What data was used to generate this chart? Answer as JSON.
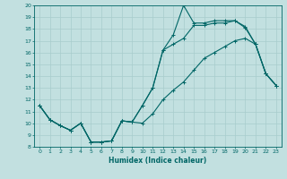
{
  "xlabel": "Humidex (Indice chaleur)",
  "bg_color": "#c2e0e0",
  "line_color": "#006666",
  "grid_color": "#a8cccc",
  "xlim": [
    -0.5,
    23.5
  ],
  "ylim": [
    8,
    20
  ],
  "xticks": [
    0,
    1,
    2,
    3,
    4,
    5,
    6,
    7,
    8,
    9,
    10,
    11,
    12,
    13,
    14,
    15,
    16,
    17,
    18,
    19,
    20,
    21,
    22,
    23
  ],
  "yticks": [
    8,
    9,
    10,
    11,
    12,
    13,
    14,
    15,
    16,
    17,
    18,
    19,
    20
  ],
  "line1_x": [
    0,
    1,
    2,
    3,
    4,
    5,
    6,
    7,
    8,
    9,
    10,
    11,
    12,
    13,
    14,
    15,
    16,
    17,
    18,
    19,
    20,
    21,
    22,
    23
  ],
  "line1_y": [
    11.5,
    10.3,
    9.8,
    9.4,
    10.0,
    8.4,
    8.4,
    8.5,
    10.2,
    10.1,
    10.0,
    10.8,
    12.0,
    12.8,
    13.5,
    14.5,
    15.5,
    16.0,
    16.5,
    17.0,
    17.2,
    16.7,
    14.2,
    13.2
  ],
  "line2_x": [
    0,
    1,
    2,
    3,
    4,
    5,
    6,
    7,
    8,
    9,
    10,
    11,
    12,
    13,
    14,
    15,
    16,
    17,
    18,
    19,
    20,
    21,
    22,
    23
  ],
  "line2_y": [
    11.5,
    10.3,
    9.8,
    9.4,
    10.0,
    8.4,
    8.4,
    8.5,
    10.2,
    10.1,
    11.5,
    13.0,
    16.2,
    16.7,
    17.2,
    18.3,
    18.3,
    18.5,
    18.5,
    18.7,
    18.1,
    16.7,
    14.2,
    13.2
  ],
  "line3_x": [
    0,
    1,
    2,
    3,
    4,
    5,
    6,
    7,
    8,
    9,
    10,
    11,
    12,
    13,
    14,
    15,
    16,
    17,
    18,
    19,
    20,
    21,
    22,
    23
  ],
  "line3_y": [
    11.5,
    10.3,
    9.8,
    9.4,
    10.0,
    8.4,
    8.4,
    8.5,
    10.2,
    10.1,
    11.5,
    13.0,
    16.2,
    17.5,
    20.0,
    18.5,
    18.5,
    18.7,
    18.7,
    18.7,
    18.2,
    16.7,
    14.2,
    13.2
  ]
}
